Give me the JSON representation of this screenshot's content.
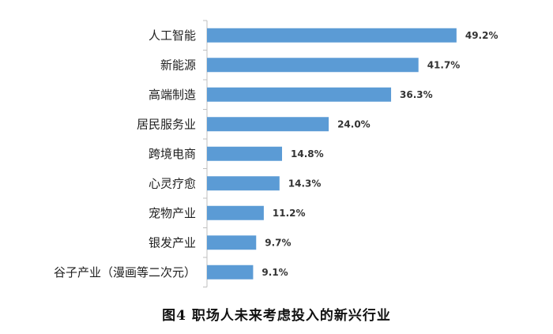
{
  "caption": "图4 职场人未来考虑投入的新兴行业",
  "chart_data": {
    "type": "bar",
    "orientation": "horizontal",
    "categories": [
      "人工智能",
      "新能源",
      "高端制造",
      "居民服务业",
      "跨境电商",
      "心灵疗愈",
      "宠物产业",
      "银发产业",
      "谷子产业（漫画等二次元）"
    ],
    "values": [
      49.2,
      41.7,
      36.3,
      24.0,
      14.8,
      14.3,
      11.2,
      9.7,
      9.1
    ],
    "value_labels": [
      "49.2%",
      "41.7%",
      "36.3%",
      "24.0%",
      "14.8%",
      "14.3%",
      "11.2%",
      "9.7%",
      "9.1%"
    ],
    "xlim": [
      0,
      50
    ],
    "grid": false,
    "legend": "none",
    "bar_color": "#5B9BD5",
    "axis_color": "#BFBFBF"
  }
}
